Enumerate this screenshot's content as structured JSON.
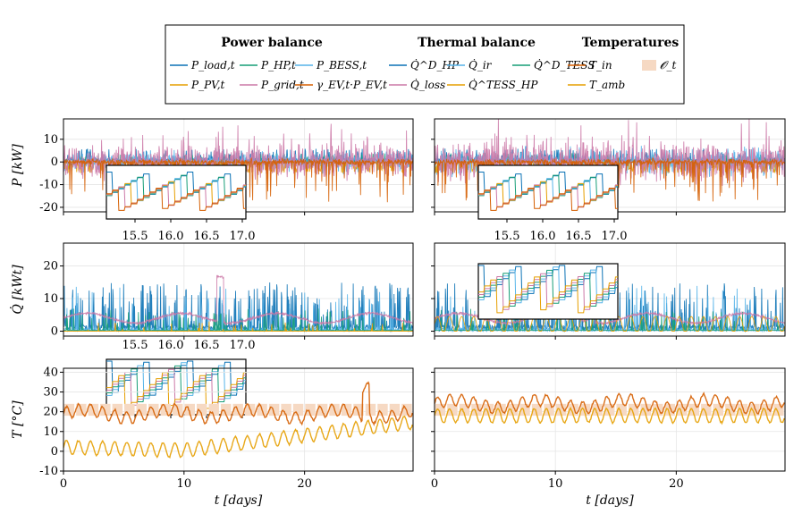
{
  "figure": {
    "legend": {
      "groups": [
        {
          "title": "Power balance",
          "items": [
            {
              "label": "P_load,t",
              "color": "#0b72b5",
              "kind": "line"
            },
            {
              "label": "P_HP,t",
              "color": "#179e77",
              "kind": "line"
            },
            {
              "label": "P_BESS,t",
              "color": "#56b4e9",
              "kind": "line"
            },
            {
              "label": "P_PV,t",
              "color": "#e69f00",
              "kind": "line"
            },
            {
              "label": "P_grid,t",
              "color": "#cc79a7",
              "kind": "line"
            },
            {
              "label": "γ_EV,t·P_EV,t",
              "color": "#d55e00",
              "kind": "line"
            }
          ]
        },
        {
          "title": "Thermal balance",
          "items": [
            {
              "label": "Q̇^D_HP",
              "color": "#0b72b5",
              "kind": "line"
            },
            {
              "label": "Q̇_ir",
              "color": "#56b4e9",
              "kind": "line"
            },
            {
              "label": "Q̇^D_TESS",
              "color": "#179e77",
              "kind": "line"
            },
            {
              "label": "Q̇_loss",
              "color": "#cc79a7",
              "kind": "line"
            },
            {
              "label": "Q̇^TESS_HP",
              "color": "#e69f00",
              "kind": "line"
            }
          ]
        },
        {
          "title": "Temperatures",
          "items": [
            {
              "label": "T_in",
              "color": "#d55e00",
              "kind": "line"
            },
            {
              "label": "T_amb",
              "color": "#e69f00",
              "kind": "line"
            },
            {
              "label": "𝓞_t",
              "color": "#f6d9c3",
              "kind": "patch"
            }
          ]
        }
      ]
    }
  },
  "chart_data": [
    {
      "type": "line",
      "id": "power-left",
      "ylabel": "P [kW]",
      "xlabel": "",
      "xlim": [
        0,
        29
      ],
      "ylim": [
        -22,
        19
      ],
      "yticks": [
        -20,
        -10,
        0,
        10
      ],
      "xticks": [
        0,
        10,
        20
      ],
      "series": [
        {
          "name": "P_load,t"
        },
        {
          "name": "P_HP,t"
        },
        {
          "name": "P_BESS,t"
        },
        {
          "name": "P_PV,t"
        },
        {
          "name": "P_grid,t"
        },
        {
          "name": "γ_EV,t·P_EV,t"
        }
      ],
      "inset": {
        "xlim": [
          15.1,
          17.05
        ],
        "xticks": [
          15.5,
          16.0,
          16.5,
          17.0
        ],
        "xtick_labels": [
          "15.5",
          "16.0",
          "16.5",
          "17.0"
        ]
      }
    },
    {
      "type": "line",
      "id": "power-right",
      "ylabel": "",
      "xlabel": "",
      "xlim": [
        0,
        29
      ],
      "ylim": [
        -22,
        19
      ],
      "yticks": [
        -20,
        -10,
        0,
        10
      ],
      "xticks": [
        0,
        10,
        20
      ],
      "series": [
        {
          "name": "P_load,t"
        },
        {
          "name": "P_HP,t"
        },
        {
          "name": "P_BESS,t"
        },
        {
          "name": "P_PV,t"
        },
        {
          "name": "P_grid,t"
        },
        {
          "name": "γ_EV,t·P_EV,t"
        }
      ],
      "inset": {
        "xlim": [
          15.1,
          17.05
        ],
        "xticks": [
          15.5,
          16.0,
          16.5,
          17.0
        ],
        "xtick_labels": [
          "15.5",
          "16.0",
          "16.5",
          "17.0"
        ]
      }
    },
    {
      "type": "line",
      "id": "heat-left",
      "ylabel": "Q̇ [kWt]",
      "xlabel": "",
      "xlim": [
        0,
        29
      ],
      "ylim": [
        -1.5,
        27
      ],
      "yticks": [
        0,
        10,
        20
      ],
      "xticks": [
        0,
        10,
        20
      ],
      "series": [
        {
          "name": "Q̇^D_HP"
        },
        {
          "name": "Q̇_ir"
        },
        {
          "name": "Q̇^D_TESS"
        },
        {
          "name": "Q̇_loss"
        },
        {
          "name": "Q̇^TESS_HP"
        }
      ],
      "inset": {
        "xlim": [
          15.1,
          17.05
        ],
        "xticks": [
          15.5,
          16.0,
          16.5,
          17.0
        ],
        "xtick_labels": [
          "15.5",
          "16.0",
          "16.5",
          "17.0"
        ]
      }
    },
    {
      "type": "line",
      "id": "heat-right",
      "ylabel": "",
      "xlabel": "",
      "xlim": [
        0,
        29
      ],
      "ylim": [
        -1.5,
        27
      ],
      "yticks": [
        0,
        10,
        20
      ],
      "xticks": [
        0,
        10,
        20
      ],
      "series": [
        {
          "name": "Q̇^D_HP"
        },
        {
          "name": "Q̇_ir"
        },
        {
          "name": "Q̇^D_TESS"
        },
        {
          "name": "Q̇_loss"
        },
        {
          "name": "Q̇^TESS_HP"
        }
      ],
      "inset": {
        "xlim": [
          15.1,
          17.05
        ],
        "xticks": [],
        "xtick_labels": []
      }
    },
    {
      "type": "line",
      "id": "temp-left",
      "ylabel": "T [°C]",
      "xlabel": "t [days]",
      "xlim": [
        0,
        29
      ],
      "ylim": [
        -10,
        42
      ],
      "yticks": [
        -10,
        0,
        10,
        20,
        30,
        40
      ],
      "xticks": [
        0,
        10,
        20
      ],
      "series": [
        {
          "name": "T_in"
        },
        {
          "name": "T_amb"
        },
        {
          "name": "𝓞_t",
          "band": [
            18,
            24
          ]
        }
      ]
    },
    {
      "type": "line",
      "id": "temp-right",
      "ylabel": "",
      "xlabel": "t [days]",
      "xlim": [
        0,
        29
      ],
      "ylim": [
        -10,
        42
      ],
      "yticks": [
        -10,
        0,
        10,
        20,
        30,
        40
      ],
      "xticks": [
        0,
        10,
        20
      ],
      "series": [
        {
          "name": "T_in"
        },
        {
          "name": "T_amb"
        },
        {
          "name": "𝓞_t",
          "band": [
            18,
            24
          ]
        }
      ]
    }
  ]
}
